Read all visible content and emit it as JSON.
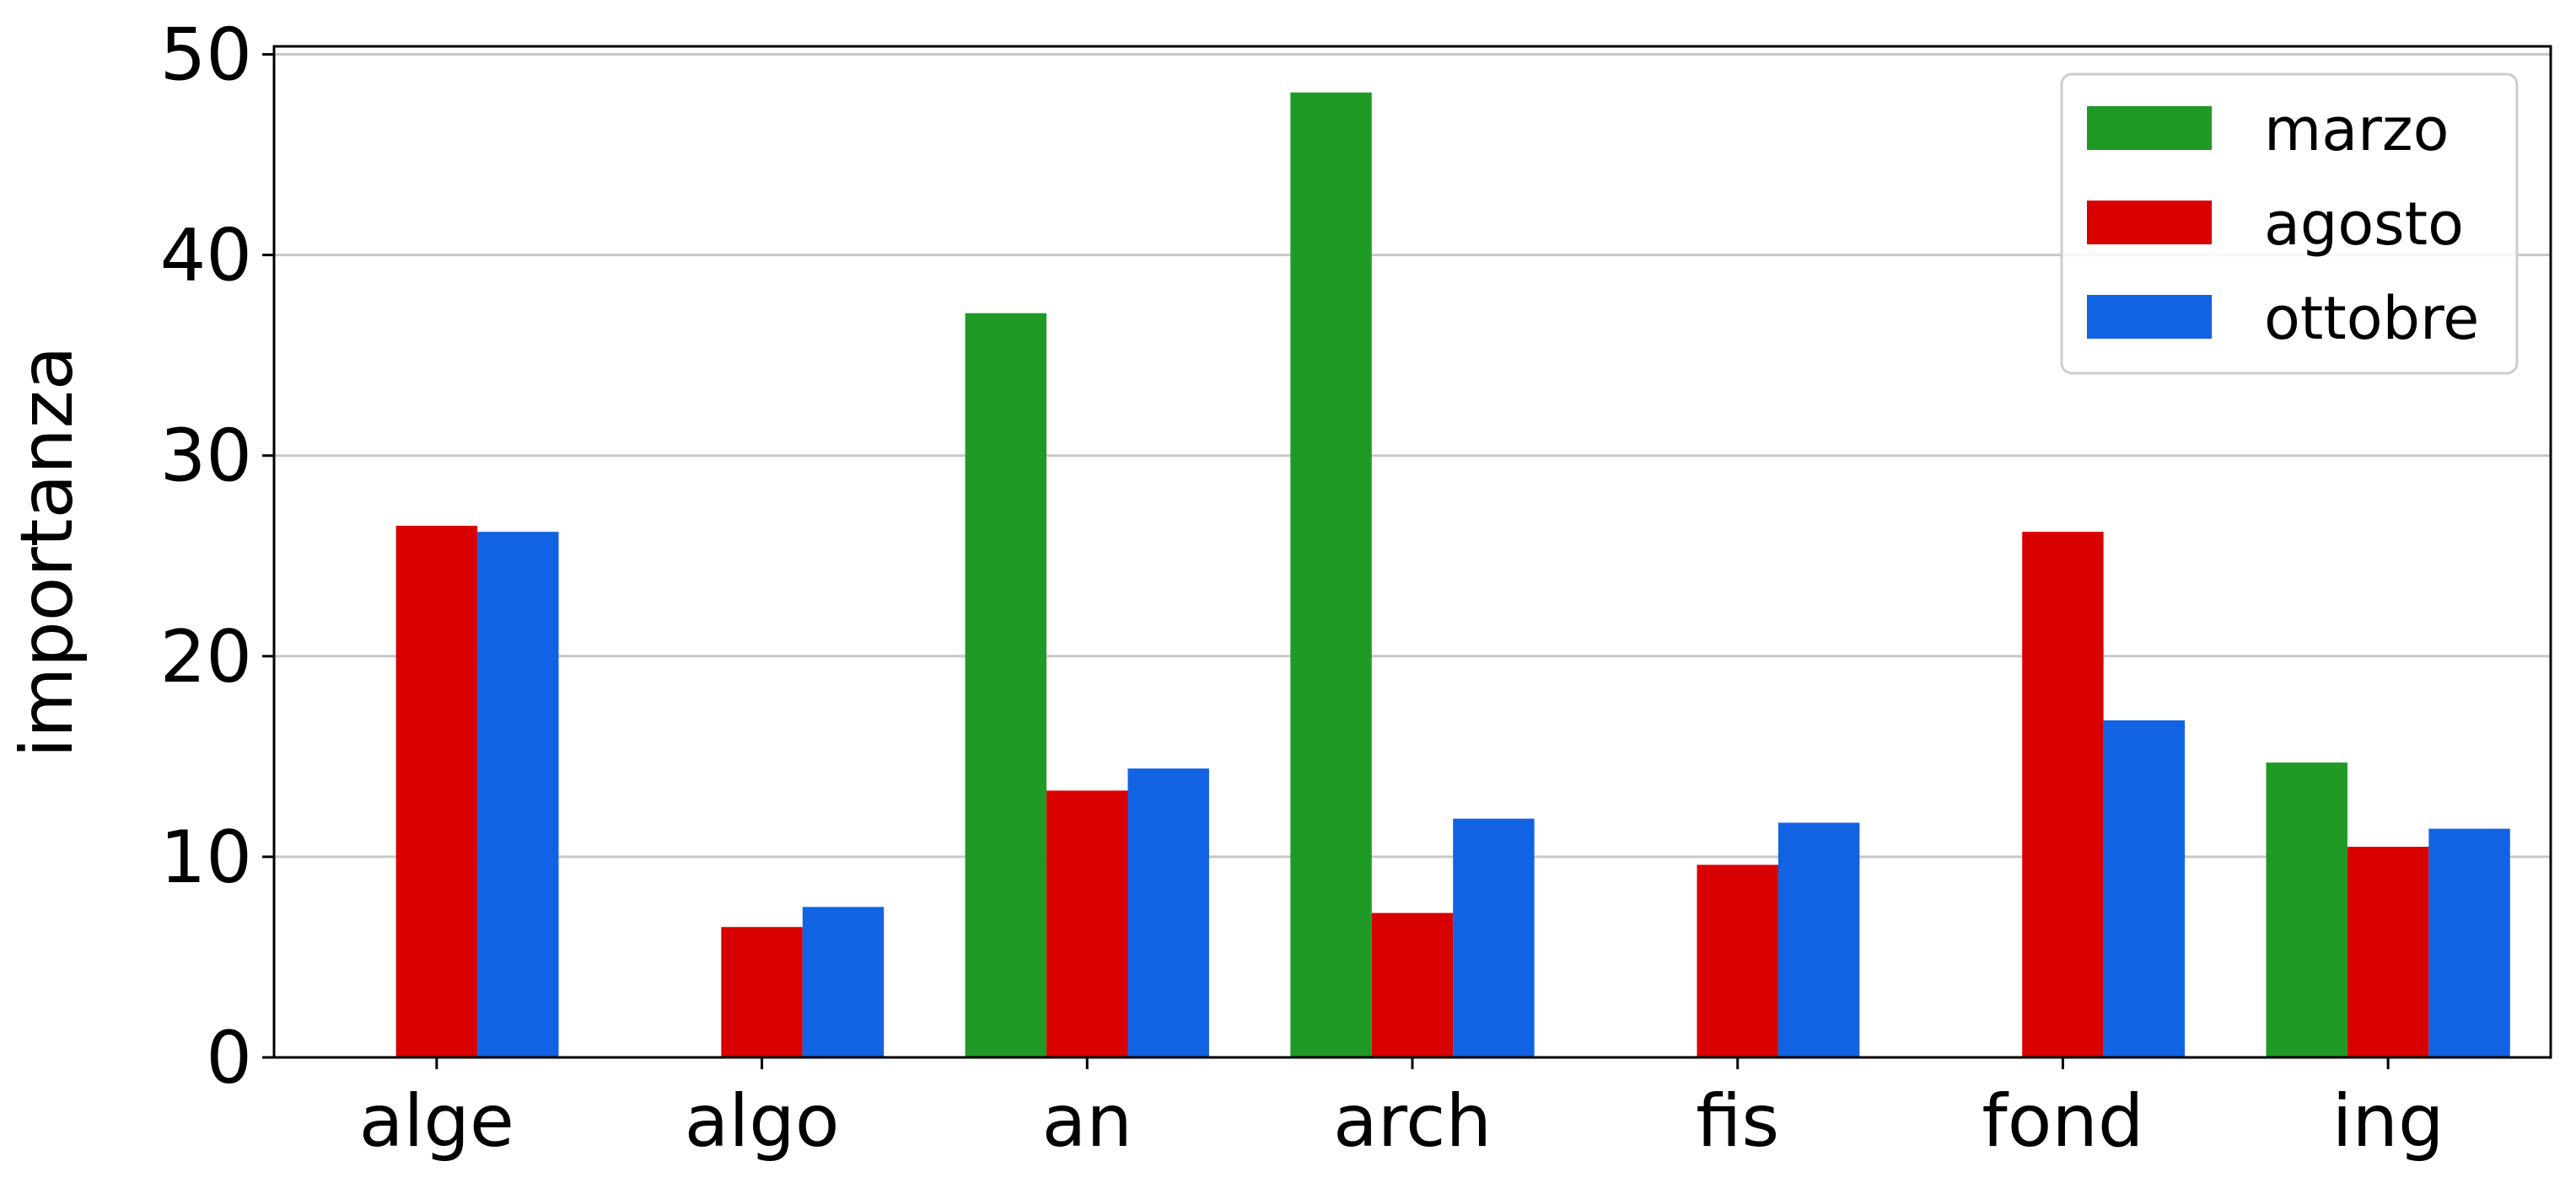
{
  "chart_data": {
    "type": "bar",
    "title": "",
    "xlabel": "",
    "ylabel": "importanza",
    "categories": [
      "alge",
      "algo",
      "an",
      "arch",
      "fis",
      "fond",
      "ing"
    ],
    "series": [
      {
        "name": "marzo",
        "color": "#1f9a27",
        "values": [
          0,
          0,
          37.1,
          48.1,
          0,
          0,
          14.7
        ]
      },
      {
        "name": "agosto",
        "color": "#d90000",
        "values": [
          26.5,
          6.5,
          13.3,
          7.2,
          9.6,
          26.2,
          10.5
        ]
      },
      {
        "name": "ottobre",
        "color": "#1263e3",
        "values": [
          26.2,
          7.5,
          14.4,
          11.9,
          11.7,
          16.8,
          11.4
        ]
      }
    ],
    "ylim": [
      0,
      50.4
    ],
    "yticks": [
      0,
      10,
      20,
      30,
      40,
      50
    ],
    "grid": "horizontal",
    "legend_position": "top-right"
  }
}
